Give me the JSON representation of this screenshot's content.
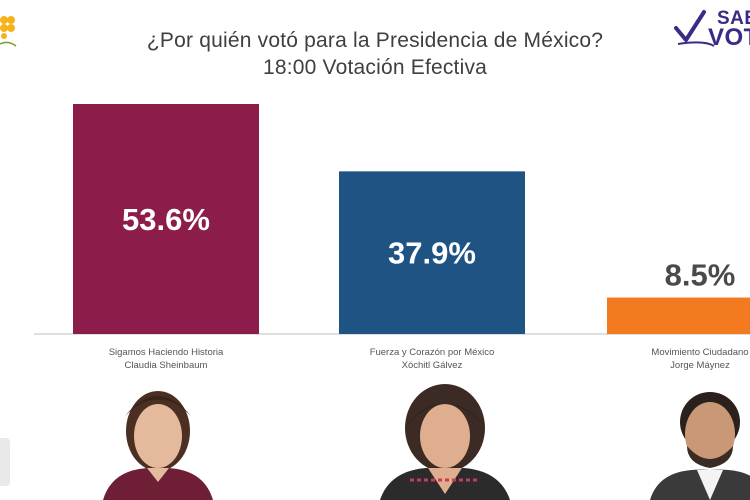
{
  "header": {
    "title_line1": "¿Por quién votó para la Presidencia de México?",
    "title_line2": "18:00 Votación Efectiva"
  },
  "brand": {
    "line1": "SAB",
    "line2": "VOTA",
    "color": "#3b2a86"
  },
  "colors": {
    "candidate1": "#8c1d4a",
    "candidate2": "#1e5384",
    "candidate3": "#f47a1f",
    "axis": "#bfbfbf"
  },
  "chart_data": {
    "type": "bar",
    "title": "¿Por quién votó para la Presidencia de México?",
    "subtitle": "18:00 Votación Efectiva",
    "categories": [
      [
        "Sigamos Haciendo Historia",
        "Claudia Sheinbaum"
      ],
      [
        "Fuerza y Corazón por México",
        "Xóchitl Gálvez"
      ],
      [
        "Movimiento Ciudadano",
        "Jorge Máynez"
      ]
    ],
    "values": [
      53.6,
      37.9,
      8.5
    ],
    "value_labels": [
      "53.6%",
      "37.9%",
      "8.5%"
    ],
    "value_label_placement": [
      "inside",
      "inside",
      "above"
    ],
    "ylim": [
      0,
      53.6
    ],
    "grid": false,
    "legend": "none"
  },
  "photos": [
    {
      "name": "Claudia Sheinbaum",
      "icon": "candidate-portrait"
    },
    {
      "name": "Xóchitl Gálvez",
      "icon": "candidate-portrait"
    },
    {
      "name": "Jorge Máynez",
      "icon": "candidate-portrait"
    }
  ]
}
